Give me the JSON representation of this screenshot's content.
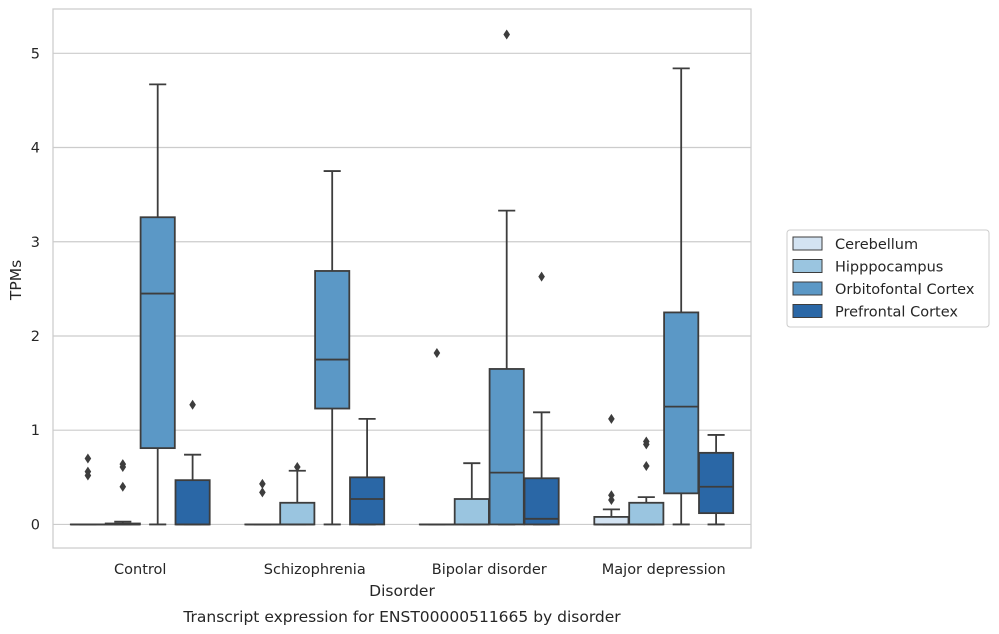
{
  "chart_data": {
    "type": "box",
    "title": "Transcript expression for ENST00000511665 by disorder",
    "xlabel": "Disorder",
    "ylabel": "TPMs",
    "ylim": [
      -0.25,
      5.47
    ],
    "yticks": [
      0,
      1,
      2,
      3,
      4,
      5
    ],
    "grid": "horizontal",
    "legend_position": "right",
    "categories": [
      "Control",
      "Schizophrenia",
      "Bipolar disorder",
      "Major depression"
    ],
    "series": [
      {
        "name": "Cerebellum",
        "color": "#d3e3f2",
        "boxes": [
          {
            "whislo": 0.0,
            "q1": 0.0,
            "med": 0.0,
            "q3": 0.0,
            "whishi": 0.0,
            "fliers": [
              0.7,
              0.56,
              0.52
            ]
          },
          {
            "whislo": 0.0,
            "q1": 0.0,
            "med": 0.0,
            "q3": 0.0,
            "whishi": 0.0,
            "fliers": [
              0.43,
              0.34
            ]
          },
          {
            "whislo": 0.0,
            "q1": 0.0,
            "med": 0.0,
            "q3": 0.0,
            "whishi": 0.0,
            "fliers": [
              1.82
            ]
          },
          {
            "whislo": 0.0,
            "q1": 0.0,
            "med": 0.0,
            "q3": 0.08,
            "whishi": 0.16,
            "fliers": [
              1.12,
              0.31,
              0.26
            ]
          }
        ]
      },
      {
        "name": "Hipppocampus",
        "color": "#9ac5e0",
        "boxes": [
          {
            "whislo": 0.0,
            "q1": 0.0,
            "med": 0.0,
            "q3": 0.01,
            "whishi": 0.03,
            "fliers": [
              0.64,
              0.61,
              0.4
            ]
          },
          {
            "whislo": 0.0,
            "q1": 0.0,
            "med": 0.0,
            "q3": 0.23,
            "whishi": 0.57,
            "fliers": [
              0.61
            ]
          },
          {
            "whislo": 0.0,
            "q1": 0.0,
            "med": 0.0,
            "q3": 0.27,
            "whishi": 0.65,
            "fliers": []
          },
          {
            "whislo": 0.0,
            "q1": 0.0,
            "med": 0.0,
            "q3": 0.23,
            "whishi": 0.29,
            "fliers": [
              0.88,
              0.85,
              0.62
            ]
          }
        ]
      },
      {
        "name": "Orbitofontal Cortex",
        "color": "#5b98c6",
        "boxes": [
          {
            "whislo": 0.0,
            "q1": 0.81,
            "med": 2.45,
            "q3": 3.26,
            "whishi": 4.67,
            "fliers": []
          },
          {
            "whislo": 0.0,
            "q1": 1.23,
            "med": 1.75,
            "q3": 2.69,
            "whishi": 3.75,
            "fliers": []
          },
          {
            "whislo": 0.0,
            "q1": 0.0,
            "med": 0.55,
            "q3": 1.65,
            "whishi": 3.33,
            "fliers": [
              5.2
            ]
          },
          {
            "whislo": 0.0,
            "q1": 0.33,
            "med": 1.25,
            "q3": 2.25,
            "whishi": 4.84,
            "fliers": []
          }
        ]
      },
      {
        "name": "Prefrontal Cortex",
        "color": "#2a67a6",
        "boxes": [
          {
            "whislo": 0.0,
            "q1": 0.0,
            "med": 0.0,
            "q3": 0.47,
            "whishi": 0.74,
            "fliers": [
              1.27
            ]
          },
          {
            "whislo": 0.0,
            "q1": 0.0,
            "med": 0.27,
            "q3": 0.5,
            "whishi": 1.12,
            "fliers": []
          },
          {
            "whislo": 0.0,
            "q1": 0.0,
            "med": 0.06,
            "q3": 0.49,
            "whishi": 1.19,
            "fliers": [
              2.63
            ]
          },
          {
            "whislo": 0.0,
            "q1": 0.12,
            "med": 0.4,
            "q3": 0.76,
            "whishi": 0.95,
            "fliers": []
          }
        ]
      }
    ]
  }
}
